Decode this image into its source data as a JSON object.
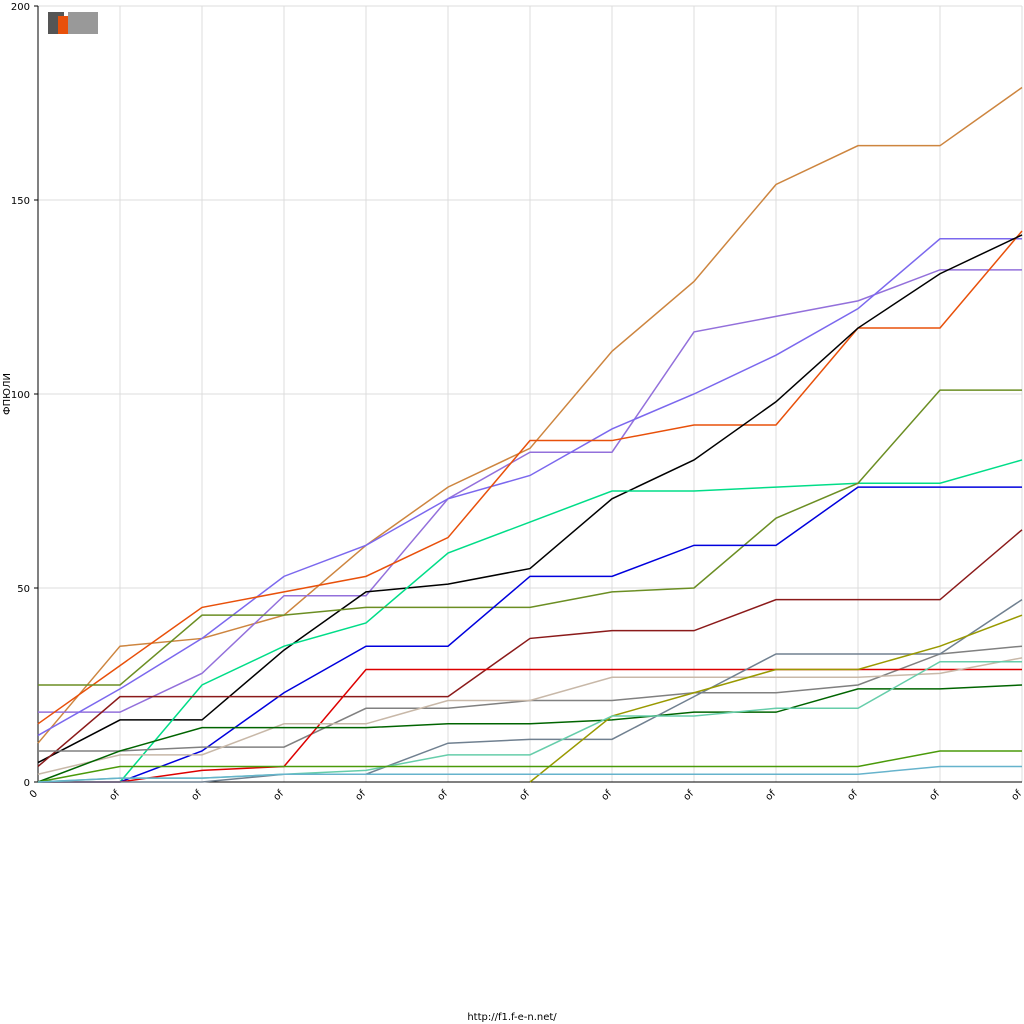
{
  "chart_data": {
    "type": "line",
    "y_label": "ФПЮЛИ",
    "footer": "http://f1.f-e-n.net/",
    "categories": [
      "0",
      "of",
      "of",
      "of",
      "of",
      "of",
      "of",
      "of",
      "of",
      "of",
      "of",
      "of",
      "of"
    ],
    "ylim": [
      0,
      200
    ],
    "yticks": [
      0,
      50,
      100,
      150,
      200
    ],
    "grid": true,
    "series": [
      {
        "color": "#cd853f",
        "values": [
          10,
          35,
          37,
          43,
          61,
          76,
          86,
          111,
          129,
          154,
          164,
          164,
          179
        ]
      },
      {
        "color": "#9370db",
        "values": [
          18,
          18,
          28,
          48,
          48,
          73,
          85,
          85,
          116,
          120,
          124,
          132,
          132
        ]
      },
      {
        "color": "#7b68ee",
        "values": [
          12,
          24,
          37,
          53,
          61,
          73,
          79,
          91,
          100,
          110,
          122,
          140,
          140
        ]
      },
      {
        "color": "#e8500a",
        "values": [
          15,
          30,
          45,
          49,
          53,
          63,
          88,
          88,
          92,
          92,
          117,
          117,
          142
        ]
      },
      {
        "color": "#000000",
        "values": [
          5,
          16,
          16,
          34,
          49,
          51,
          55,
          73,
          83,
          98,
          117,
          131,
          141
        ]
      },
      {
        "color": "#00dd88",
        "values": [
          0,
          0,
          25,
          35,
          41,
          59,
          67,
          75,
          75,
          76,
          77,
          77,
          83
        ]
      },
      {
        "color": "#6b8e23",
        "values": [
          25,
          25,
          43,
          43,
          45,
          45,
          45,
          49,
          50,
          68,
          77,
          101,
          101
        ]
      },
      {
        "color": "#0000dd",
        "values": [
          0,
          0,
          8,
          23,
          35,
          35,
          53,
          53,
          61,
          61,
          76,
          76,
          76
        ]
      },
      {
        "color": "#8b1a1a",
        "values": [
          4,
          22,
          22,
          22,
          22,
          22,
          37,
          39,
          39,
          47,
          47,
          47,
          65
        ]
      },
      {
        "color": "#808080",
        "values": [
          8,
          8,
          9,
          9,
          19,
          19,
          21,
          21,
          23,
          23,
          25,
          33,
          35
        ]
      },
      {
        "color": "#dd0000",
        "values": [
          0,
          0,
          3,
          4,
          29,
          29,
          29,
          29,
          29,
          29,
          29,
          29,
          29
        ]
      },
      {
        "color": "#c8b8a8",
        "values": [
          2,
          7,
          7,
          15,
          15,
          21,
          21,
          27,
          27,
          27,
          27,
          28,
          32
        ]
      },
      {
        "color": "#006400",
        "values": [
          0,
          8,
          14,
          14,
          14,
          15,
          15,
          16,
          18,
          18,
          24,
          24,
          25
        ]
      },
      {
        "color": "#708090",
        "values": [
          0,
          0,
          0,
          2,
          2,
          10,
          11,
          11,
          22,
          33,
          33,
          33,
          47
        ]
      },
      {
        "color": "#999900",
        "values": [
          null,
          null,
          null,
          null,
          null,
          null,
          0,
          17,
          23,
          29,
          29,
          35,
          43
        ]
      },
      {
        "color": "#66cdaa",
        "values": [
          0,
          1,
          1,
          2,
          3,
          7,
          7,
          17,
          17,
          19,
          19,
          31,
          31
        ]
      },
      {
        "color": "#4a9a0a",
        "values": [
          0,
          4,
          4,
          4,
          4,
          4,
          4,
          4,
          4,
          4,
          4,
          8,
          8
        ]
      },
      {
        "color": "#66b3cc",
        "values": [
          0,
          1,
          1,
          2,
          2,
          2,
          2,
          2,
          2,
          2,
          2,
          4,
          4
        ]
      }
    ]
  }
}
